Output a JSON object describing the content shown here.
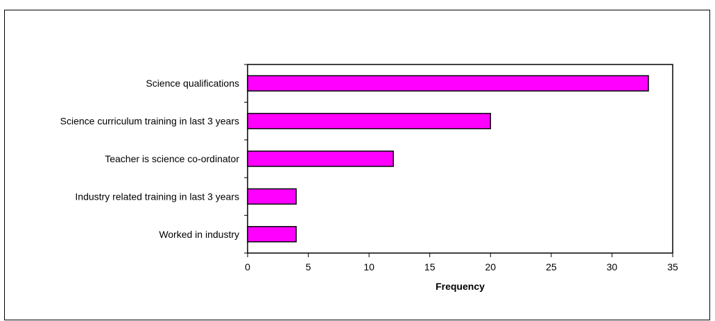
{
  "chart_data": {
    "type": "bar",
    "orientation": "horizontal",
    "title": "",
    "xlabel": "Frequency",
    "ylabel": "",
    "xlim": [
      0,
      35
    ],
    "x_ticks": [
      0,
      5,
      10,
      15,
      20,
      25,
      30,
      35
    ],
    "categories": [
      "Science qualifications",
      "Science curriculum training in last 3 years",
      "Teacher is science co-ordinator",
      "Industry related training in last 3 years",
      "Worked in industry"
    ],
    "values": [
      33,
      20,
      12,
      4,
      4
    ],
    "grid": false,
    "legend": "none",
    "colors": {
      "bar_fill": "#ff00ff",
      "bar_stroke": "#000000",
      "axis": "#000000",
      "background": "#ffffff"
    }
  }
}
